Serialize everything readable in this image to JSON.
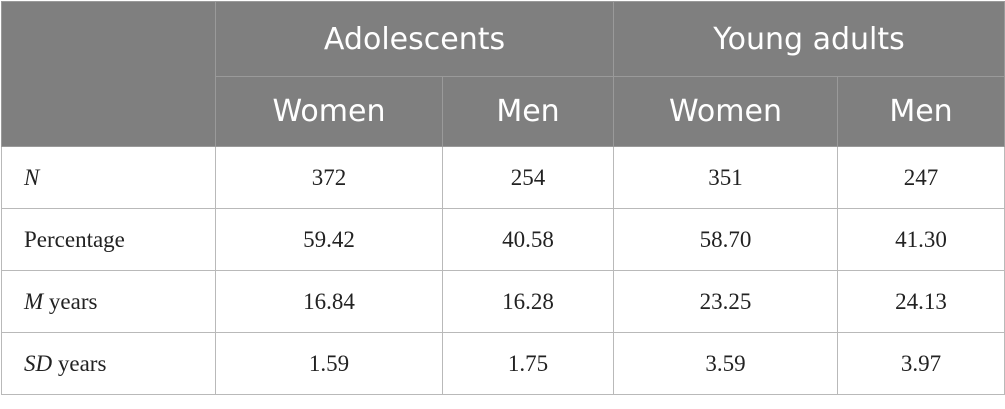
{
  "table": {
    "header": {
      "corner": "",
      "groups": [
        "Adolescents",
        "Young adults"
      ],
      "subgroups": [
        "Women",
        "Men",
        "Women",
        "Men"
      ]
    },
    "rows": [
      {
        "label_italic": "N",
        "label_rest": "",
        "values": [
          "372",
          "254",
          "351",
          "247"
        ]
      },
      {
        "label_italic": "",
        "label_rest": "Percentage",
        "values": [
          "59.42",
          "40.58",
          "58.70",
          "41.30"
        ]
      },
      {
        "label_italic": "M",
        "label_rest": " years",
        "values": [
          "16.84",
          "16.28",
          "23.25",
          "24.13"
        ]
      },
      {
        "label_italic": "SD",
        "label_rest": " years",
        "values": [
          "1.59",
          "1.75",
          "3.59",
          "3.97"
        ]
      }
    ]
  },
  "colors": {
    "header_bg": "#7f7f7f",
    "header_text": "#ffffff",
    "grid": "#b9b9b9"
  }
}
